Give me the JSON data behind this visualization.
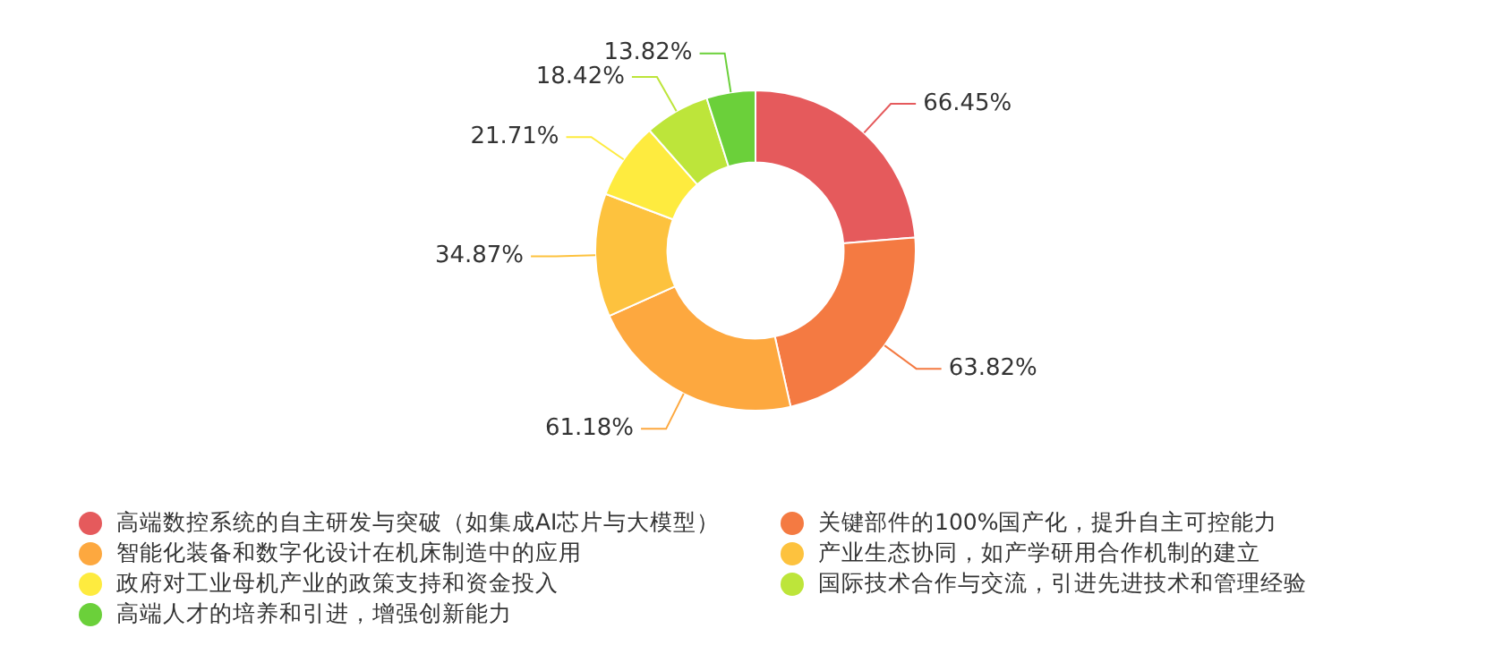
{
  "chart_data": {
    "type": "donut",
    "categories": [
      "高端数控系统的自主研发与突破（如集成AI芯片与大模型）",
      "关键部件的100%国产化，提升自主可控能力",
      "智能化装备和数字化设计在机床制造中的应用",
      "产业生态协同，如产学研用合作机制的建立",
      "政府对工业母机产业的政策支持和资金投入",
      "国际技术合作与交流，引进先进技术和管理经验",
      "高端人才的培养和引进，增强创新能力"
    ],
    "values": [
      66.45,
      63.82,
      61.18,
      34.87,
      21.71,
      18.42,
      13.82
    ],
    "value_labels": [
      "66.45%",
      "63.82%",
      "61.18%",
      "34.87%",
      "21.71%",
      "18.42%",
      "13.82%"
    ],
    "colors": [
      "#e55a5c",
      "#f47a42",
      "#fda83f",
      "#fdc23e",
      "#feeb3f",
      "#bde53a",
      "#6bd03a"
    ],
    "legend": "bottom"
  }
}
